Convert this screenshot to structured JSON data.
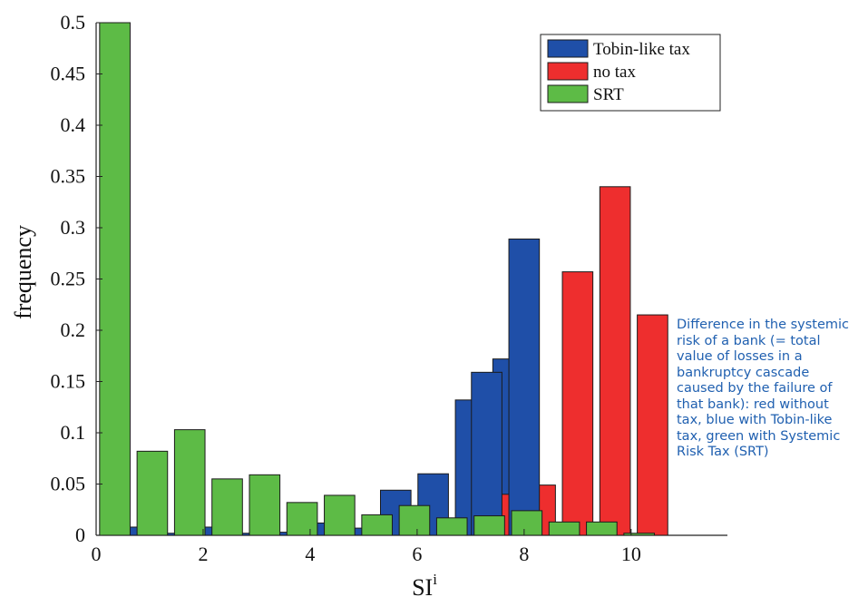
{
  "chart_data": {
    "type": "bar",
    "xlabel": "SI",
    "xlabel_superscript": "i",
    "ylabel": "frequency",
    "xlim": [
      0,
      11.8
    ],
    "ylim": [
      0,
      0.5
    ],
    "xticks": [
      "0",
      "2",
      "4",
      "6",
      "8",
      "10"
    ],
    "yticks": [
      "0",
      "0.05",
      "0.1",
      "0.15",
      "0.2",
      "0.25",
      "0.3",
      "0.35",
      "0.4",
      "0.45",
      "0.5"
    ],
    "bin_width": 0.57,
    "series": [
      {
        "name": "Tobin-like tax",
        "color": "#1f4fa8",
        "x": [
          0.7,
          1.4,
          2.1,
          2.8,
          3.5,
          4.2,
          4.9,
          5.6,
          6.3,
          7.0,
          7.7
        ],
        "values": [
          0.008,
          0.002,
          0.008,
          0.002,
          0.003,
          0.012,
          0.007,
          0.044,
          0.06,
          0.132,
          0.172
        ]
      },
      {
        "name": "no tax",
        "color": "#ee2e2e",
        "x": [
          7.6,
          8.3,
          9.0,
          9.7,
          10.4
        ],
        "values": [
          0.04,
          0.049,
          0.257,
          0.34,
          0.215
        ]
      },
      {
        "name": "SRT",
        "color": "#5dbb46",
        "x": [
          0.35,
          1.05,
          1.75,
          2.45,
          3.15,
          3.85,
          4.55,
          5.25,
          5.95,
          6.65,
          7.35,
          8.05,
          8.75,
          9.45,
          10.15
        ],
        "values": [
          0.5,
          0.082,
          0.103,
          0.055,
          0.059,
          0.032,
          0.039,
          0.02,
          0.029,
          0.017,
          0.019,
          0.024,
          0.013,
          0.013,
          0.002
        ]
      }
    ],
    "blue_upper": {
      "x": [
        7.3,
        8.0
      ],
      "values": [
        0.159,
        0.289
      ]
    },
    "legend_position": "top-right"
  },
  "caption": "Difference in the systemic risk of a bank (= total value of losses in a bankruptcy cascade caused by the failure of that bank): red without tax, blue with Tobin-like tax, green with Systemic Risk Tax (SRT)"
}
